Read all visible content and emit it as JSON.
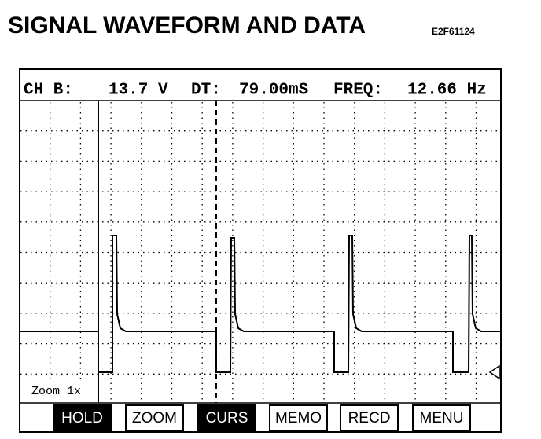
{
  "header": {
    "title": "SIGNAL WAVEFORM AND DATA",
    "code": "E2F61124"
  },
  "status": {
    "channel": "CH B:",
    "voltage": "13.7 V",
    "dt_label": "DT:",
    "dt": "79.00mS",
    "freq_label": "FREQ:",
    "freq": "12.66 Hz"
  },
  "zoom": "Zoom 1x",
  "buttons": [
    "HOLD",
    "ZOOM",
    "CURS",
    "MEMO",
    "RECD",
    "MENU"
  ]
}
